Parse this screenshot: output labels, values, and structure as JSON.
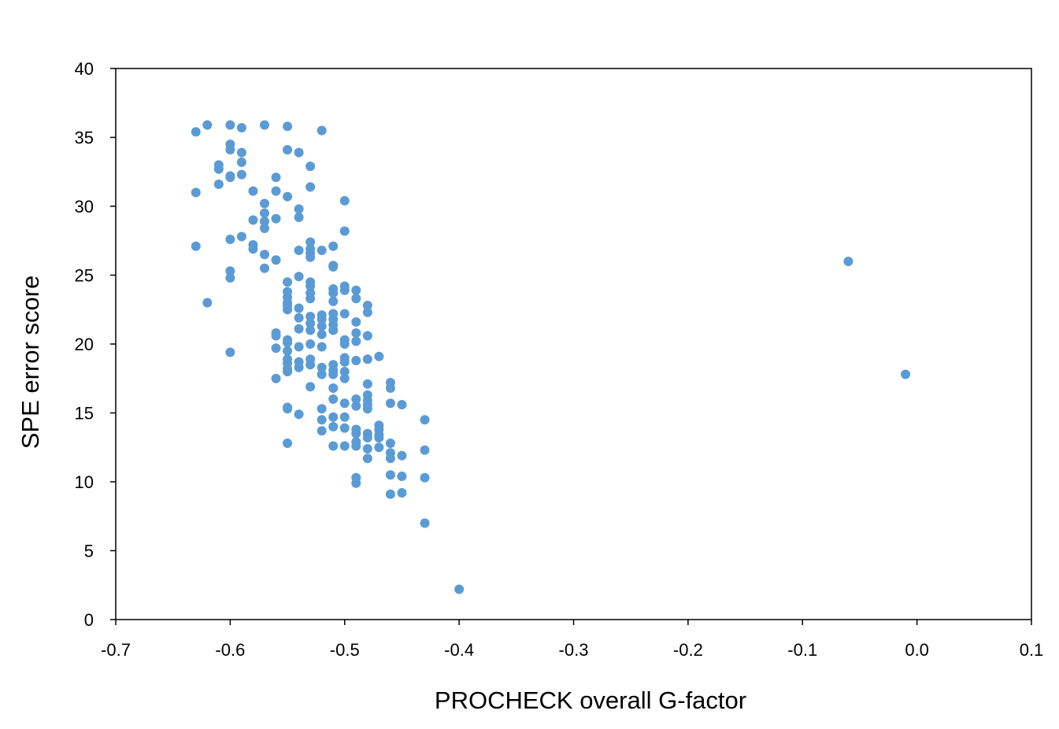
{
  "chart_data": {
    "type": "scatter",
    "title": "",
    "xlabel": "PROCHECK overall G-factor",
    "ylabel": "SPE error score",
    "xlim": [
      -0.7,
      0.1
    ],
    "ylim": [
      0,
      40
    ],
    "xticks": [
      -0.7,
      -0.6,
      -0.5,
      -0.4,
      -0.3,
      -0.2,
      -0.1,
      0.0,
      0.1
    ],
    "xtick_labels": [
      "-0.7",
      "-0.6",
      "-0.5",
      "-0.4",
      "-0.3",
      "-0.2",
      "-0.1",
      "0.0",
      "0.1"
    ],
    "yticks": [
      0,
      5,
      10,
      15,
      20,
      25,
      30,
      35,
      40
    ],
    "ytick_labels": [
      "0",
      "5",
      "10",
      "15",
      "20",
      "25",
      "30",
      "35",
      "40"
    ],
    "grid": false,
    "legend": "none",
    "marker_color": "#5B9BD5",
    "series": [
      {
        "points": [
          [
            -0.63,
            35.4
          ],
          [
            -0.62,
            35.9
          ],
          [
            -0.6,
            35.9
          ],
          [
            -0.59,
            35.7
          ],
          [
            -0.57,
            35.9
          ],
          [
            -0.55,
            35.8
          ],
          [
            -0.52,
            35.5
          ],
          [
            -0.6,
            34.5
          ],
          [
            -0.6,
            34.1
          ],
          [
            -0.59,
            33.9
          ],
          [
            -0.55,
            34.1
          ],
          [
            -0.54,
            33.9
          ],
          [
            -0.61,
            33.0
          ],
          [
            -0.61,
            32.7
          ],
          [
            -0.59,
            33.2
          ],
          [
            -0.53,
            32.9
          ],
          [
            -0.6,
            32.2
          ],
          [
            -0.6,
            32.1
          ],
          [
            -0.59,
            32.3
          ],
          [
            -0.56,
            32.1
          ],
          [
            -0.63,
            31.0
          ],
          [
            -0.61,
            31.6
          ],
          [
            -0.58,
            31.1
          ],
          [
            -0.56,
            31.1
          ],
          [
            -0.55,
            30.7
          ],
          [
            -0.53,
            31.4
          ],
          [
            -0.57,
            30.2
          ],
          [
            -0.57,
            29.5
          ],
          [
            -0.54,
            29.8
          ],
          [
            -0.5,
            30.4
          ],
          [
            -0.58,
            29.0
          ],
          [
            -0.57,
            28.9
          ],
          [
            -0.57,
            28.4
          ],
          [
            -0.56,
            29.1
          ],
          [
            -0.54,
            29.2
          ],
          [
            -0.5,
            28.2
          ],
          [
            -0.63,
            27.1
          ],
          [
            -0.6,
            27.6
          ],
          [
            -0.59,
            27.8
          ],
          [
            -0.58,
            27.2
          ],
          [
            -0.58,
            26.9
          ],
          [
            -0.57,
            26.5
          ],
          [
            -0.56,
            26.1
          ],
          [
            -0.54,
            26.8
          ],
          [
            -0.53,
            27.4
          ],
          [
            -0.53,
            26.9
          ],
          [
            -0.53,
            26.6
          ],
          [
            -0.53,
            26.3
          ],
          [
            -0.52,
            26.8
          ],
          [
            -0.51,
            27.1
          ],
          [
            -0.6,
            25.3
          ],
          [
            -0.6,
            24.8
          ],
          [
            -0.57,
            25.5
          ],
          [
            -0.51,
            25.7
          ],
          [
            -0.51,
            25.6
          ],
          [
            -0.55,
            24.5
          ],
          [
            -0.54,
            24.9
          ],
          [
            -0.53,
            24.5
          ],
          [
            -0.53,
            24.2
          ],
          [
            -0.55,
            23.8
          ],
          [
            -0.55,
            23.4
          ],
          [
            -0.55,
            23.0
          ],
          [
            -0.55,
            22.8
          ],
          [
            -0.55,
            22.5
          ],
          [
            -0.53,
            23.7
          ],
          [
            -0.53,
            23.3
          ],
          [
            -0.51,
            24.0
          ],
          [
            -0.51,
            23.7
          ],
          [
            -0.51,
            23.1
          ],
          [
            -0.5,
            24.2
          ],
          [
            -0.5,
            23.9
          ],
          [
            -0.49,
            23.9
          ],
          [
            -0.49,
            23.3
          ],
          [
            -0.62,
            23.0
          ],
          [
            -0.54,
            22.6
          ],
          [
            -0.48,
            22.8
          ],
          [
            -0.48,
            22.3
          ],
          [
            -0.54,
            21.9
          ],
          [
            -0.54,
            21.1
          ],
          [
            -0.53,
            22.0
          ],
          [
            -0.53,
            21.5
          ],
          [
            -0.53,
            21.0
          ],
          [
            -0.52,
            22.1
          ],
          [
            -0.52,
            21.8
          ],
          [
            -0.52,
            21.3
          ],
          [
            -0.52,
            20.7
          ],
          [
            -0.51,
            22.2
          ],
          [
            -0.51,
            21.8
          ],
          [
            -0.51,
            21.4
          ],
          [
            -0.51,
            21.0
          ],
          [
            -0.5,
            22.2
          ],
          [
            -0.49,
            21.6
          ],
          [
            -0.49,
            20.8
          ],
          [
            -0.48,
            20.6
          ],
          [
            -0.56,
            20.8
          ],
          [
            -0.56,
            20.6
          ],
          [
            -0.56,
            19.7
          ],
          [
            -0.55,
            20.3
          ],
          [
            -0.55,
            20.1
          ],
          [
            -0.55,
            19.5
          ],
          [
            -0.54,
            19.8
          ],
          [
            -0.53,
            20.0
          ],
          [
            -0.52,
            19.8
          ],
          [
            -0.5,
            20.3
          ],
          [
            -0.5,
            20.0
          ],
          [
            -0.49,
            20.2
          ],
          [
            -0.6,
            19.4
          ],
          [
            -0.55,
            18.9
          ],
          [
            -0.55,
            18.6
          ],
          [
            -0.55,
            18.2
          ],
          [
            -0.55,
            18.0
          ],
          [
            -0.54,
            18.7
          ],
          [
            -0.54,
            18.3
          ],
          [
            -0.53,
            18.9
          ],
          [
            -0.53,
            18.5
          ],
          [
            -0.52,
            18.3
          ],
          [
            -0.52,
            17.8
          ],
          [
            -0.51,
            18.5
          ],
          [
            -0.51,
            18.1
          ],
          [
            -0.51,
            17.8
          ],
          [
            -0.5,
            19.0
          ],
          [
            -0.5,
            18.7
          ],
          [
            -0.5,
            18.0
          ],
          [
            -0.5,
            17.5
          ],
          [
            -0.49,
            18.8
          ],
          [
            -0.48,
            18.9
          ],
          [
            -0.47,
            19.1
          ],
          [
            -0.56,
            17.5
          ],
          [
            -0.53,
            16.9
          ],
          [
            -0.51,
            16.8
          ],
          [
            -0.48,
            17.1
          ],
          [
            -0.46,
            17.2
          ],
          [
            -0.46,
            16.8
          ],
          [
            -0.51,
            16.0
          ],
          [
            -0.5,
            15.7
          ],
          [
            -0.49,
            16.0
          ],
          [
            -0.49,
            15.5
          ],
          [
            -0.48,
            16.3
          ],
          [
            -0.48,
            15.9
          ],
          [
            -0.48,
            15.6
          ],
          [
            -0.48,
            15.3
          ],
          [
            -0.46,
            15.7
          ],
          [
            -0.45,
            15.6
          ],
          [
            -0.55,
            15.4
          ],
          [
            -0.55,
            15.3
          ],
          [
            -0.54,
            14.9
          ],
          [
            -0.52,
            15.3
          ],
          [
            -0.52,
            14.5
          ],
          [
            -0.51,
            14.7
          ],
          [
            -0.5,
            14.7
          ],
          [
            -0.43,
            14.5
          ],
          [
            -0.52,
            13.7
          ],
          [
            -0.51,
            14.0
          ],
          [
            -0.5,
            13.9
          ],
          [
            -0.49,
            13.8
          ],
          [
            -0.49,
            13.5
          ],
          [
            -0.48,
            13.5
          ],
          [
            -0.48,
            13.2
          ],
          [
            -0.47,
            14.1
          ],
          [
            -0.47,
            13.8
          ],
          [
            -0.47,
            13.4
          ],
          [
            -0.47,
            13.2
          ],
          [
            -0.55,
            12.8
          ],
          [
            -0.51,
            12.6
          ],
          [
            -0.5,
            12.6
          ],
          [
            -0.49,
            12.9
          ],
          [
            -0.49,
            12.6
          ],
          [
            -0.48,
            12.4
          ],
          [
            -0.47,
            12.5
          ],
          [
            -0.46,
            12.8
          ],
          [
            -0.46,
            12.1
          ],
          [
            -0.46,
            11.7
          ],
          [
            -0.45,
            11.9
          ],
          [
            -0.43,
            12.3
          ],
          [
            -0.48,
            11.7
          ],
          [
            -0.49,
            10.3
          ],
          [
            -0.49,
            9.9
          ],
          [
            -0.46,
            10.5
          ],
          [
            -0.46,
            9.1
          ],
          [
            -0.45,
            10.4
          ],
          [
            -0.45,
            9.2
          ],
          [
            -0.43,
            10.3
          ],
          [
            -0.43,
            7.0
          ],
          [
            -0.4,
            2.2
          ],
          [
            -0.06,
            26.0
          ],
          [
            -0.01,
            17.8
          ]
        ]
      }
    ]
  }
}
